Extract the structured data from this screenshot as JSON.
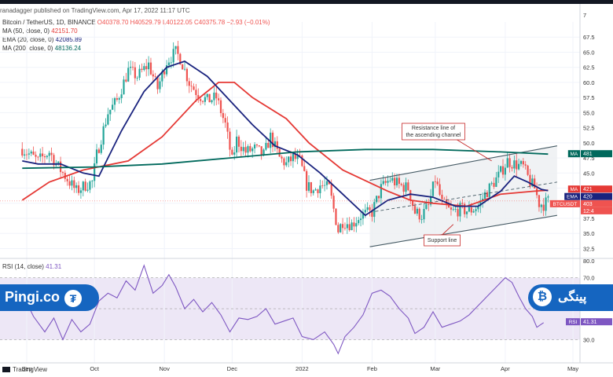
{
  "header": {
    "publisher": "ranadagger published on TradingView.com, Apr 17, 2022 11:17 UTC"
  },
  "legend": {
    "symbol": "Bitcoin / TetherUS, 1D, BINANCE",
    "ohlc": "O40378.70 H40529.79 L40122.05 C40375.78 −2.93 (−0.01%)",
    "ma50_label": "MA (50, close, 0)",
    "ma50_value": "42151.70",
    "ema20_label": "EMA (20, close, 0)",
    "ema20_value": "42085.89",
    "ma200_label": "MA (200, close, 0)",
    "ma200_value": "48136.24",
    "rsi_label": "RSI (14, close)",
    "rsi_value": "41.31"
  },
  "annotations": {
    "resistance_line1": "Resistance line of",
    "resistance_line2": "the ascending channel",
    "support": "Support line"
  },
  "footer": {
    "brand": "TradingView"
  },
  "banners": {
    "left_text": "Pingi.co",
    "left_coin_icon": "tether-icon",
    "right_text": "پینگی",
    "right_coin_icon": "bitcoin-icon"
  },
  "colors": {
    "up": "#26a69a",
    "down": "#ef5350",
    "ma50": "#e53935",
    "ema20": "#1a237e",
    "ma200": "#00695c",
    "rsi": "#7e57c2",
    "channel": "#455a64",
    "annotation": "#c62828",
    "banner": "#1565c0"
  },
  "chart_data": {
    "type": "candlestick",
    "title": "Bitcoin / TetherUS, 1D, BINANCE",
    "y_axis": {
      "ticks": [
        32500,
        35000,
        37500,
        40000,
        42500,
        45000,
        47500,
        50000,
        52500,
        55000,
        57500,
        60000,
        62500,
        65000,
        67500
      ],
      "tick_labels": [
        "32.5",
        "35.0",
        "37.5",
        "40.0",
        "42.5",
        "45.0",
        "47.5",
        "50.0",
        "52.5",
        "55.0",
        "57.5",
        "60.0",
        "62.5",
        "65.0",
        "67.5"
      ],
      "top_label": "7",
      "range": [
        31000,
        70000
      ]
    },
    "x_axis": {
      "labels": [
        "Sep",
        "Oct",
        "Nov",
        "Dec",
        "2022",
        "Feb",
        "Mar",
        "Apr",
        "May"
      ],
      "range_days": [
        0,
        250
      ],
      "label_days": [
        0,
        30,
        61,
        91,
        122,
        153,
        181,
        212,
        242
      ]
    },
    "close_anchors": [
      [
        -2,
        49000
      ],
      [
        5,
        47000
      ],
      [
        10,
        48500
      ],
      [
        14,
        46000
      ],
      [
        18,
        44000
      ],
      [
        22,
        42000
      ],
      [
        26,
        43000
      ],
      [
        29,
        43500
      ],
      [
        31,
        48000
      ],
      [
        36,
        55000
      ],
      [
        40,
        57000
      ],
      [
        45,
        62000
      ],
      [
        49,
        61000
      ],
      [
        54,
        63000
      ],
      [
        58,
        59000
      ],
      [
        62,
        63500
      ],
      [
        66,
        65000
      ],
      [
        68,
        64000
      ],
      [
        72,
        60000
      ],
      [
        76,
        58000
      ],
      [
        80,
        57000
      ],
      [
        84,
        57500
      ],
      [
        88,
        53000
      ],
      [
        91,
        47000
      ],
      [
        93,
        50500
      ],
      [
        97,
        48500
      ],
      [
        101,
        49000
      ],
      [
        105,
        48000
      ],
      [
        108,
        51000
      ],
      [
        112,
        47500
      ],
      [
        115,
        46500
      ],
      [
        118,
        47500
      ],
      [
        121,
        47000
      ],
      [
        124,
        43000
      ],
      [
        127,
        42000
      ],
      [
        130,
        43000
      ],
      [
        134,
        42500
      ],
      [
        138,
        35500
      ],
      [
        140,
        37000
      ],
      [
        144,
        36500
      ],
      [
        148,
        38000
      ],
      [
        153,
        38500
      ],
      [
        157,
        42500
      ],
      [
        161,
        44000
      ],
      [
        165,
        43000
      ],
      [
        169,
        42500
      ],
      [
        172,
        38500
      ],
      [
        175,
        38000
      ],
      [
        178,
        39500
      ],
      [
        181,
        44000
      ],
      [
        184,
        40000
      ],
      [
        188,
        38500
      ],
      [
        192,
        39000
      ],
      [
        196,
        38700
      ],
      [
        200,
        39500
      ],
      [
        203,
        41500
      ],
      [
        206,
        43000
      ],
      [
        209,
        44500
      ],
      [
        213,
        47000
      ],
      [
        216,
        46500
      ],
      [
        220,
        46000
      ],
      [
        223,
        43500
      ],
      [
        225,
        42500
      ],
      [
        227,
        40000
      ],
      [
        229,
        39800
      ],
      [
        231,
        40375
      ]
    ],
    "indicators": [
      {
        "name": "MA (50, close, 0)",
        "color": "#e53935",
        "last": 42151.7,
        "points": [
          [
            -2,
            40500
          ],
          [
            10,
            43500
          ],
          [
            25,
            45500
          ],
          [
            45,
            47000
          ],
          [
            60,
            51000
          ],
          [
            75,
            57000
          ],
          [
            85,
            60000
          ],
          [
            92,
            60000
          ],
          [
            100,
            57500
          ],
          [
            115,
            54000
          ],
          [
            125,
            50000
          ],
          [
            140,
            45500
          ],
          [
            160,
            42000
          ],
          [
            170,
            40500
          ],
          [
            180,
            40000
          ],
          [
            195,
            39500
          ],
          [
            210,
            41500
          ],
          [
            225,
            42000
          ],
          [
            231,
            42151
          ]
        ]
      },
      {
        "name": "EMA (20, close, 0)",
        "color": "#1a237e",
        "last": 42085.89,
        "points": [
          [
            -2,
            47000
          ],
          [
            5,
            46500
          ],
          [
            15,
            46500
          ],
          [
            25,
            45000
          ],
          [
            32,
            44500
          ],
          [
            42,
            52000
          ],
          [
            52,
            58500
          ],
          [
            62,
            62500
          ],
          [
            70,
            63500
          ],
          [
            80,
            61000
          ],
          [
            90,
            57000
          ],
          [
            100,
            53000
          ],
          [
            110,
            49500
          ],
          [
            120,
            48000
          ],
          [
            130,
            45000
          ],
          [
            140,
            41500
          ],
          [
            150,
            38000
          ],
          [
            160,
            40500
          ],
          [
            170,
            41500
          ],
          [
            180,
            41000
          ],
          [
            190,
            39500
          ],
          [
            200,
            39500
          ],
          [
            210,
            42000
          ],
          [
            216,
            44500
          ],
          [
            222,
            43500
          ],
          [
            228,
            42300
          ],
          [
            231,
            42085
          ]
        ]
      },
      {
        "name": "MA (200, close, 0)",
        "color": "#00695c",
        "last": 48136.24,
        "points": [
          [
            -2,
            45800
          ],
          [
            30,
            46000
          ],
          [
            60,
            46500
          ],
          [
            90,
            47500
          ],
          [
            120,
            48500
          ],
          [
            150,
            48900
          ],
          [
            180,
            48900
          ],
          [
            210,
            48500
          ],
          [
            231,
            48136
          ]
        ]
      }
    ],
    "price_tags": [
      {
        "label": "MA",
        "value": "481",
        "color": "#00695c"
      },
      {
        "label": "MA",
        "value": "421",
        "color": "#e53935"
      },
      {
        "label": "EMA",
        "value": "420",
        "color": "#1a237e"
      },
      {
        "label": "BTCUSDT",
        "value": "403",
        "color": "#ef5350"
      },
      {
        "label": "",
        "value": "12:4",
        "color": "#ef5350"
      }
    ],
    "channel": {
      "upper": [
        [
          152,
          43800
        ],
        [
          235,
          49500
        ]
      ],
      "lower": [
        [
          152,
          32800
        ],
        [
          235,
          38000
        ]
      ],
      "mid": [
        [
          152,
          38500
        ],
        [
          235,
          43500
        ]
      ]
    },
    "rsi": {
      "title": "RSI (14, close)",
      "last": 41.31,
      "ticks": [
        30,
        50,
        70
      ],
      "tick_labels": [
        "30.0",
        "50.0",
        "70.0"
      ],
      "top_label": "80.0",
      "range": [
        15,
        82
      ],
      "band": [
        30,
        70
      ],
      "points": [
        [
          -2,
          60
        ],
        [
          3,
          45
        ],
        [
          8,
          35
        ],
        [
          12,
          44
        ],
        [
          16,
          30
        ],
        [
          20,
          43
        ],
        [
          24,
          35
        ],
        [
          28,
          40
        ],
        [
          32,
          55
        ],
        [
          36,
          60
        ],
        [
          40,
          57
        ],
        [
          44,
          68
        ],
        [
          48,
          62
        ],
        [
          52,
          78
        ],
        [
          56,
          60
        ],
        [
          60,
          65
        ],
        [
          63,
          72
        ],
        [
          66,
          64
        ],
        [
          70,
          50
        ],
        [
          74,
          56
        ],
        [
          78,
          48
        ],
        [
          82,
          54
        ],
        [
          86,
          46
        ],
        [
          90,
          35
        ],
        [
          94,
          44
        ],
        [
          98,
          43
        ],
        [
          102,
          45
        ],
        [
          106,
          50
        ],
        [
          110,
          40
        ],
        [
          114,
          42
        ],
        [
          118,
          44
        ],
        [
          122,
          32
        ],
        [
          127,
          30
        ],
        [
          132,
          35
        ],
        [
          136,
          27
        ],
        [
          138,
          21
        ],
        [
          141,
          32
        ],
        [
          145,
          38
        ],
        [
          149,
          46
        ],
        [
          153,
          60
        ],
        [
          157,
          62
        ],
        [
          161,
          58
        ],
        [
          165,
          50
        ],
        [
          169,
          44
        ],
        [
          172,
          34
        ],
        [
          176,
          38
        ],
        [
          180,
          48
        ],
        [
          184,
          38
        ],
        [
          188,
          40
        ],
        [
          192,
          42
        ],
        [
          196,
          46
        ],
        [
          200,
          52
        ],
        [
          204,
          58
        ],
        [
          208,
          64
        ],
        [
          212,
          70
        ],
        [
          215,
          67
        ],
        [
          218,
          58
        ],
        [
          221,
          50
        ],
        [
          224,
          45
        ],
        [
          226,
          38
        ],
        [
          229,
          41
        ]
      ]
    }
  }
}
